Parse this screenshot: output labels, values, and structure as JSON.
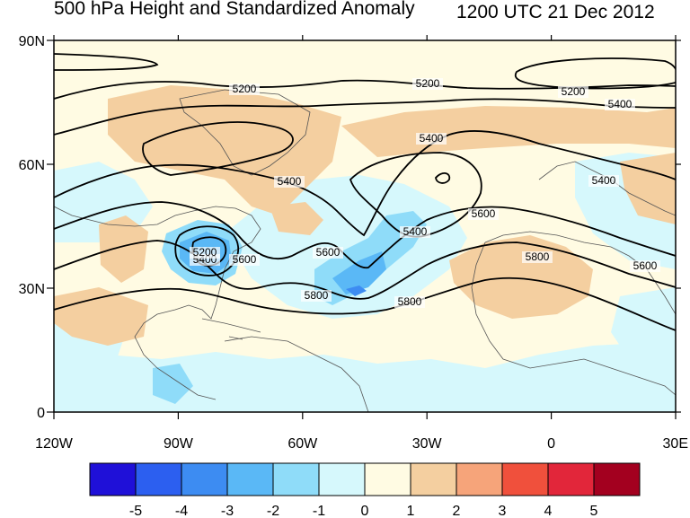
{
  "title": "500 hPa Height and Standardized Anomaly",
  "valid_time": "1200 UTC 21 Dec 2012",
  "map": {
    "lon_range": [
      -120,
      30
    ],
    "lat_range": [
      0,
      90
    ],
    "lon_ticks": [
      {
        "value": -120,
        "label": "120W"
      },
      {
        "value": -90,
        "label": "90W"
      },
      {
        "value": -60,
        "label": "60W"
      },
      {
        "value": -30,
        "label": "30W"
      },
      {
        "value": 0,
        "label": "0"
      },
      {
        "value": 30,
        "label": "30E"
      }
    ],
    "lat_ticks": [
      {
        "value": 90,
        "label": "90N"
      },
      {
        "value": 60,
        "label": "60N"
      },
      {
        "value": 30,
        "label": "30N"
      },
      {
        "value": 0,
        "label": "0"
      }
    ],
    "contour_labels": [
      "5200",
      "5200",
      "5200",
      "5400",
      "5400",
      "5400",
      "5400",
      "5400",
      "5400",
      "5600",
      "5600",
      "5600",
      "5600",
      "5800",
      "5800",
      "5800",
      "5200"
    ]
  },
  "colorbar": {
    "colors": [
      "#1f10d8",
      "#2c5ff0",
      "#3d8cf2",
      "#5ab8f6",
      "#8fdcf9",
      "#d6f8fc",
      "#fffbe3",
      "#f4cfa0",
      "#f6a47a",
      "#f0503c",
      "#e2263a",
      "#a3001f"
    ],
    "labels": [
      "-5",
      "-4",
      "-3",
      "-2",
      "-1",
      "0",
      "1",
      "2",
      "3",
      "4",
      "5"
    ]
  }
}
